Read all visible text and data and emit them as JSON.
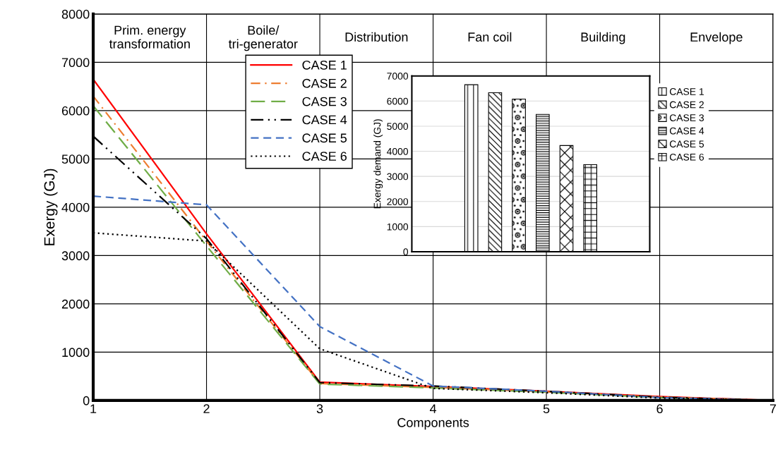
{
  "chart_data": [
    {
      "type": "line",
      "xlabel": "Components",
      "ylabel": "Exergy (GJ)",
      "x": [
        1,
        2,
        3,
        4,
        5,
        6,
        7
      ],
      "series": [
        {
          "name": "CASE 1",
          "color": "#ff0000",
          "line_style": "solid",
          "values": [
            6650,
            3450,
            380,
            290,
            190,
            80,
            0
          ]
        },
        {
          "name": "CASE 2",
          "color": "#ed7d31",
          "line_style": "dashdot",
          "values": [
            6300,
            3300,
            350,
            270,
            180,
            70,
            0
          ]
        },
        {
          "name": "CASE 3",
          "color": "#70ad47",
          "line_style": "longdash",
          "values": [
            6100,
            3200,
            340,
            260,
            170,
            60,
            0
          ]
        },
        {
          "name": "CASE 4",
          "color": "#000000",
          "line_style": "dashdotdot",
          "values": [
            5470,
            3350,
            370,
            300,
            190,
            70,
            0
          ]
        },
        {
          "name": "CASE 5",
          "color": "#4472c4",
          "line_style": "dashed",
          "values": [
            4230,
            4050,
            1530,
            300,
            190,
            60,
            0
          ]
        },
        {
          "name": "CASE 6",
          "color": "#000000",
          "line_style": "dotted",
          "values": [
            3470,
            3300,
            1070,
            250,
            160,
            50,
            0
          ]
        }
      ],
      "annotations": [
        "Prim. energy\ntransformation",
        "Boile/\ntri-generator",
        "Distribution",
        "Fan coil",
        "Building",
        "Envelope"
      ],
      "xlim": [
        1,
        7
      ],
      "xticks": [
        1,
        2,
        3,
        4,
        5,
        6,
        7
      ],
      "ylim": [
        0,
        8000
      ],
      "yticks": [
        0,
        1000,
        2000,
        3000,
        4000,
        5000,
        6000,
        7000,
        8000
      ],
      "grid": true,
      "legend": "top left",
      "marker": "none"
    },
    {
      "type": "bar",
      "ylabel": "Exergy demand (GJ)",
      "categories": [
        null
      ],
      "series": [
        {
          "name": "CASE 1",
          "color": "#000000",
          "values": [
            6650
          ]
        },
        {
          "name": "CASE 2",
          "color": "#000000",
          "values": [
            6330
          ]
        },
        {
          "name": "CASE 3",
          "color": "#000000",
          "values": [
            6080
          ]
        },
        {
          "name": "CASE 4",
          "color": "#000000",
          "values": [
            5470
          ]
        },
        {
          "name": "CASE 5",
          "color": "#000000",
          "values": [
            4230
          ]
        },
        {
          "name": "CASE 6",
          "color": "#000000",
          "values": [
            3470
          ]
        }
      ],
      "ylim": [
        0,
        7000
      ],
      "yticks": [
        0,
        1000,
        2000,
        3000,
        4000,
        5000,
        6000,
        7000
      ],
      "grid": "y",
      "legend": "right"
    }
  ]
}
